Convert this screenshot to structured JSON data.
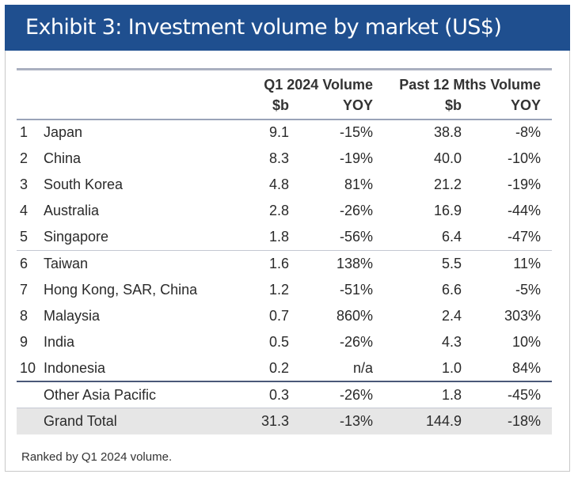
{
  "header": {
    "title": "Exhibit 3: Investment volume by market (US$)"
  },
  "table": {
    "group_headers": {
      "q1": "Q1 2024 Volume",
      "past12": "Past 12 Mths Volume"
    },
    "unit_headers": [
      "$b",
      "YOY",
      "$b",
      "YOY"
    ],
    "rows": [
      {
        "rank": "1",
        "market": "Japan",
        "q1_vol": "9.1",
        "q1_yoy": "-15%",
        "p12_vol": "38.8",
        "p12_yoy": "-8%"
      },
      {
        "rank": "2",
        "market": "China",
        "q1_vol": "8.3",
        "q1_yoy": "-19%",
        "p12_vol": "40.0",
        "p12_yoy": "-10%"
      },
      {
        "rank": "3",
        "market": "South Korea",
        "q1_vol": "4.8",
        "q1_yoy": "81%",
        "p12_vol": "21.2",
        "p12_yoy": "-19%"
      },
      {
        "rank": "4",
        "market": "Australia",
        "q1_vol": "2.8",
        "q1_yoy": "-26%",
        "p12_vol": "16.9",
        "p12_yoy": "-44%"
      },
      {
        "rank": "5",
        "market": "Singapore",
        "q1_vol": "1.8",
        "q1_yoy": "-56%",
        "p12_vol": "6.4",
        "p12_yoy": "-47%"
      },
      {
        "rank": "6",
        "market": "Taiwan",
        "q1_vol": "1.6",
        "q1_yoy": "138%",
        "p12_vol": "5.5",
        "p12_yoy": "11%"
      },
      {
        "rank": "7",
        "market": "Hong Kong, SAR, China",
        "q1_vol": "1.2",
        "q1_yoy": "-51%",
        "p12_vol": "6.6",
        "p12_yoy": "-5%"
      },
      {
        "rank": "8",
        "market": "Malaysia",
        "q1_vol": "0.7",
        "q1_yoy": "860%",
        "p12_vol": "2.4",
        "p12_yoy": "303%"
      },
      {
        "rank": "9",
        "market": "India",
        "q1_vol": "0.5",
        "q1_yoy": "-26%",
        "p12_vol": "4.3",
        "p12_yoy": "10%"
      },
      {
        "rank": "10",
        "market": "Indonesia",
        "q1_vol": "0.2",
        "q1_yoy": "n/a",
        "p12_vol": "1.0",
        "p12_yoy": "84%"
      }
    ],
    "other": {
      "market": "Other Asia Pacific",
      "q1_vol": "0.3",
      "q1_yoy": "-26%",
      "p12_vol": "1.8",
      "p12_yoy": "-45%"
    },
    "total": {
      "market": "Grand Total",
      "q1_vol": "31.3",
      "q1_yoy": "-13%",
      "p12_vol": "144.9",
      "p12_yoy": "-18%"
    }
  },
  "footnote": "Ranked by Q1 2024 volume.",
  "colors": {
    "banner": "#1f4f8f",
    "total_row": "#e6e6e6"
  }
}
